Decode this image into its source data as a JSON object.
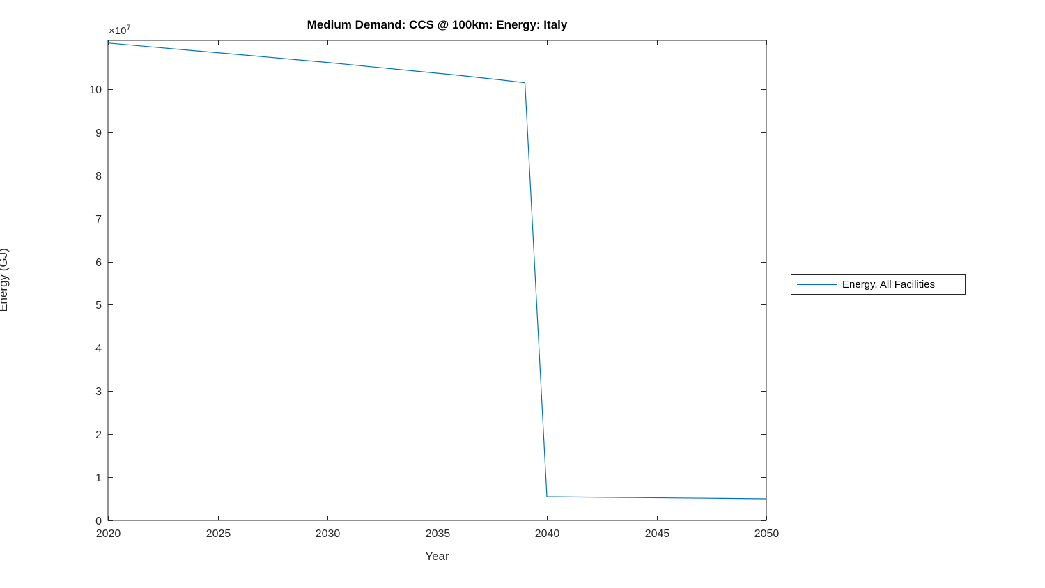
{
  "chart_data": {
    "type": "line",
    "title": "Medium Demand: CCS @ 100km: Energy: Italy",
    "xlabel": "Year",
    "ylabel": "Energy (GJ)",
    "y_axis_multiplier": {
      "base": "×10",
      "exp": "7"
    },
    "xlim": [
      2020,
      2050
    ],
    "ylim": [
      0,
      111300000
    ],
    "xticks": [
      2020,
      2025,
      2030,
      2035,
      2040,
      2045,
      2050
    ],
    "yticks": [
      0,
      1,
      2,
      3,
      4,
      5,
      6,
      7,
      8,
      9,
      10
    ],
    "ytick_scale": 10000000,
    "grid": false,
    "axis_color": "#262626",
    "legend": {
      "position": "right-outside",
      "entries": [
        "Energy, All Facilities"
      ]
    },
    "series": [
      {
        "name": "Energy, All Facilities",
        "color": "#0072BD",
        "x": [
          2020,
          2022,
          2024,
          2026,
          2028,
          2030,
          2032,
          2034,
          2036,
          2038,
          2039,
          2040,
          2042,
          2044,
          2046,
          2048,
          2050
        ],
        "y": [
          110700000,
          109800000,
          108900000,
          108000000,
          107100000,
          106200000,
          105200000,
          104200000,
          103200000,
          102100000,
          101500000,
          5500000,
          5400000,
          5300000,
          5200000,
          5100000,
          5000000
        ]
      }
    ]
  }
}
